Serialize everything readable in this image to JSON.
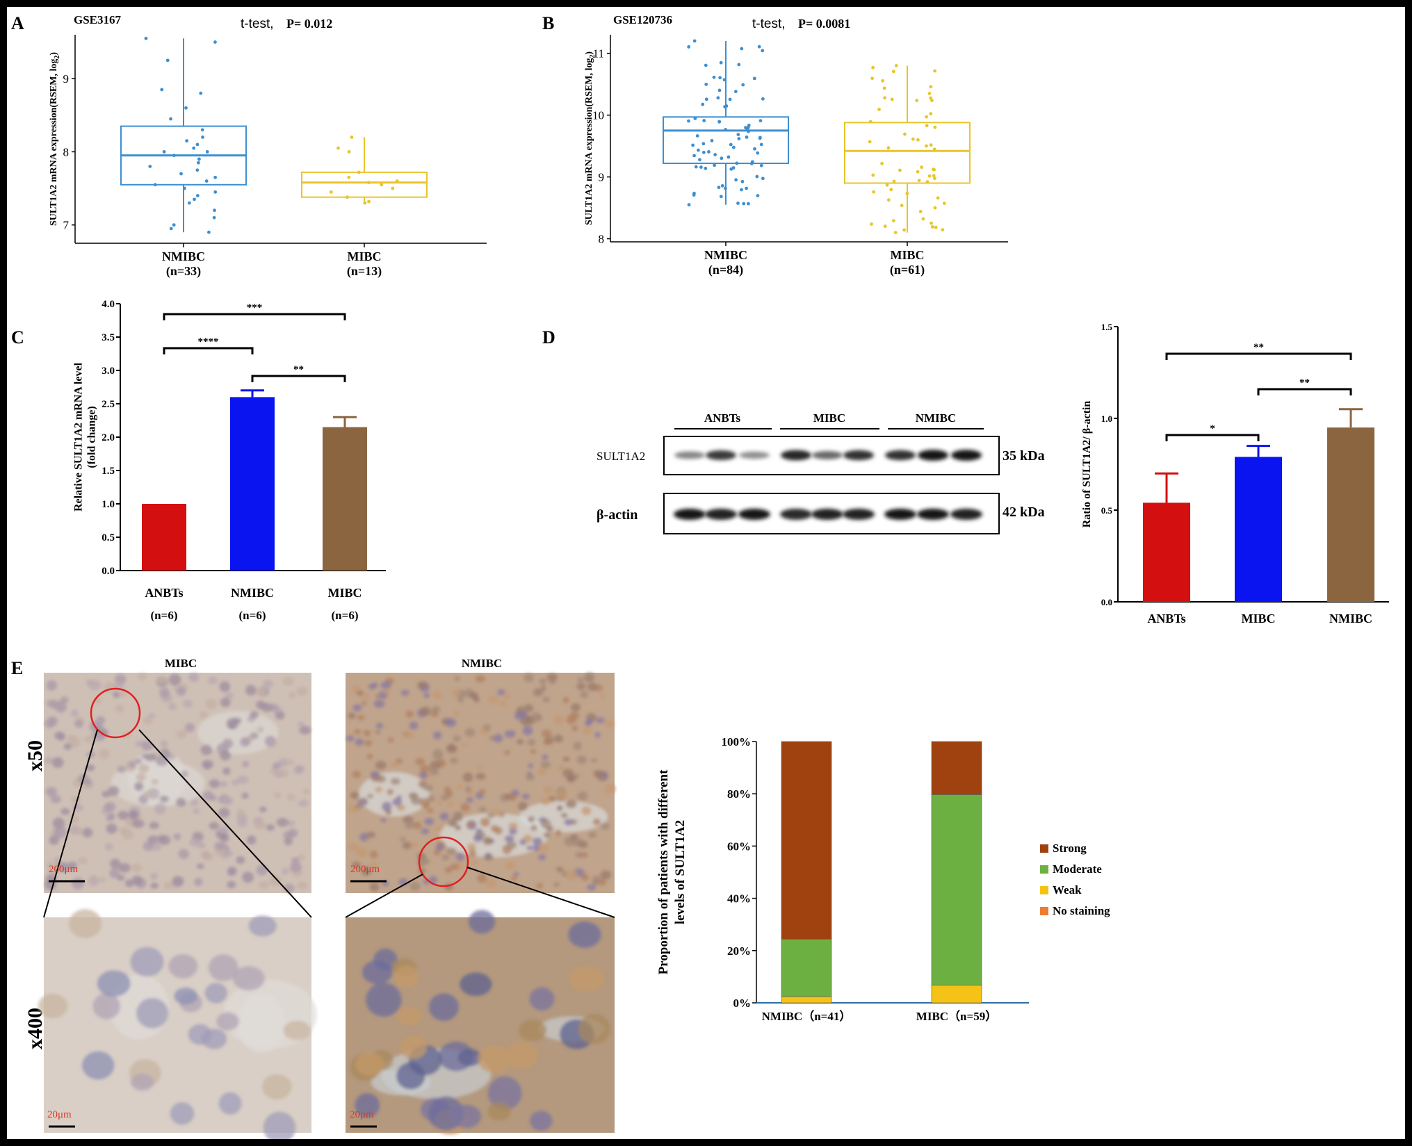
{
  "panel_labels": {
    "a": "A",
    "b": "B",
    "c": "C",
    "d": "D",
    "e": "E"
  },
  "panel_a": {
    "dataset": "GSE3167",
    "test": "t-test,",
    "p_label": "P= 0.012"
  },
  "panel_b": {
    "dataset": "GSE120736",
    "test": "t-test,",
    "p_label": "P= 0.0081"
  },
  "blot": {
    "groups": [
      "ANBTs",
      "MIBC",
      "NMIBC"
    ],
    "rows": [
      {
        "name": "SULT1A2",
        "size": "35 kDa"
      },
      {
        "name": "β-actin",
        "size": "42 kDa"
      }
    ],
    "band_intensity": {
      "SULT1A2": [
        0.35,
        0.75,
        0.3,
        0.85,
        0.5,
        0.8,
        0.8,
        0.95,
        0.95
      ],
      "beta_actin": [
        0.9,
        0.85,
        0.9,
        0.8,
        0.85,
        0.85,
        0.9,
        0.9,
        0.85
      ]
    }
  },
  "ihc": {
    "columns": [
      "MIBC",
      "NMIBC"
    ],
    "rows": [
      "x50",
      "x400"
    ],
    "scale_x50": "200μm",
    "scale_x400": "20μm"
  },
  "colors": {
    "nmibc_box": "#3d8fd1",
    "mibc_box": "#e8c52a",
    "red": "#d40f0f",
    "blue": "#0a14f0",
    "brown": "#8b6540",
    "strong": "#a0420f",
    "moderate": "#6db042",
    "weak": "#f5c315",
    "none": "#ed7d31"
  },
  "chart_data": [
    {
      "panel": "A",
      "type": "box",
      "categories": [
        "NMIBC\n(n=33)",
        "MIBC\n(n=13)"
      ],
      "category_names": [
        "NMIBC",
        "MIBC"
      ],
      "category_n": [
        "(n=33)",
        "(n=13)"
      ],
      "ylabel": "SULT1A2 mRNA expression(RSEM, log2)",
      "ylim": [
        6.75,
        9.6
      ],
      "yticks": [
        7,
        8,
        9
      ],
      "boxes": [
        {
          "min": 6.9,
          "q1": 7.55,
          "median": 7.95,
          "q3": 8.35,
          "max": 9.55,
          "points": [
            9.55,
            9.5,
            9.25,
            8.85,
            8.8,
            8.6,
            8.45,
            8.3,
            8.2,
            8.15,
            8.1,
            8.05,
            8.0,
            8.0,
            7.95,
            7.9,
            7.85,
            7.8,
            7.75,
            7.7,
            7.65,
            7.6,
            7.55,
            7.5,
            7.45,
            7.4,
            7.35,
            7.3,
            7.2,
            7.1,
            7.0,
            6.95,
            6.9
          ]
        },
        {
          "min": 7.3,
          "q1": 7.38,
          "median": 7.58,
          "q3": 7.72,
          "max": 8.2,
          "points": [
            8.2,
            8.05,
            8.0,
            7.72,
            7.65,
            7.6,
            7.58,
            7.55,
            7.5,
            7.45,
            7.38,
            7.32,
            7.3
          ]
        }
      ]
    },
    {
      "panel": "B",
      "type": "box",
      "categories": [
        "NMIBC\n(n=84)",
        "MIBC\n(n=61)"
      ],
      "category_names": [
        "NMIBC",
        "MIBC"
      ],
      "category_n": [
        "(n=84)",
        "(n=61)"
      ],
      "ylabel": "SULT1A2 mRNA expression(RSEM, log2)",
      "ylim": [
        7.95,
        11.3
      ],
      "yticks": [
        8,
        9,
        10,
        11
      ],
      "boxes": [
        {
          "min": 8.55,
          "q1": 9.22,
          "median": 9.75,
          "q3": 9.97,
          "max": 11.2,
          "n": 84
        },
        {
          "min": 8.1,
          "q1": 8.9,
          "median": 9.42,
          "q3": 9.88,
          "max": 10.8,
          "n": 61
        }
      ]
    },
    {
      "panel": "C",
      "type": "bar",
      "categories": [
        "ANBTs",
        "NMIBC",
        "MIBC"
      ],
      "category_n": [
        "(n=6)",
        "(n=6)",
        "(n=6)"
      ],
      "values": [
        1.0,
        2.6,
        2.15
      ],
      "errors": [
        0,
        0.1,
        0.15
      ],
      "ylabel": "Relative SULT1A2 mRNA level\n(fold change)",
      "ylabel_lines": [
        "Relative SULT1A2 mRNA level",
        "(fold change)"
      ],
      "ylim": [
        0,
        4.0
      ],
      "yticks": [
        "0.0",
        "0.5",
        "1.0",
        "1.5",
        "2.0",
        "2.5",
        "3.0",
        "3.5",
        "4.0"
      ],
      "significance": [
        {
          "from": 0,
          "to": 1,
          "label": "****"
        },
        {
          "from": 1,
          "to": 2,
          "label": "**"
        },
        {
          "from": 0,
          "to": 2,
          "label": "***"
        }
      ]
    },
    {
      "panel": "D",
      "type": "bar",
      "categories": [
        "ANBTs",
        "MIBC",
        "NMIBC"
      ],
      "values": [
        0.54,
        0.79,
        0.95
      ],
      "errors": [
        0.16,
        0.06,
        0.1
      ],
      "ylabel": "Ratio of SULT1A2/ β-actin",
      "ylim": [
        0,
        1.5
      ],
      "yticks": [
        "0.0",
        "0.5",
        "1.0",
        "1.5"
      ],
      "significance": [
        {
          "from": 0,
          "to": 1,
          "label": "*"
        },
        {
          "from": 1,
          "to": 2,
          "label": "**"
        },
        {
          "from": 0,
          "to": 2,
          "label": "**"
        }
      ]
    },
    {
      "panel": "E",
      "type": "stacked_bar",
      "categories": [
        "NMIBC（n=41）",
        "MIBC（n=59）"
      ],
      "ylabel": "Proportion of patients with different\nlevels of SULT1A2",
      "ylabel_lines": [
        "Proportion of patients with different",
        "levels of SULT1A2"
      ],
      "yticks": [
        "0%",
        "20%",
        "40%",
        "60%",
        "80%",
        "100%"
      ],
      "series": [
        {
          "name": "No staining",
          "values": [
            0,
            0
          ]
        },
        {
          "name": "Weak",
          "values": [
            2.4,
            6.8
          ]
        },
        {
          "name": "Moderate",
          "values": [
            22.0,
            72.9
          ]
        },
        {
          "name": "Strong",
          "values": [
            75.6,
            20.3
          ]
        }
      ],
      "legend": "right"
    }
  ]
}
